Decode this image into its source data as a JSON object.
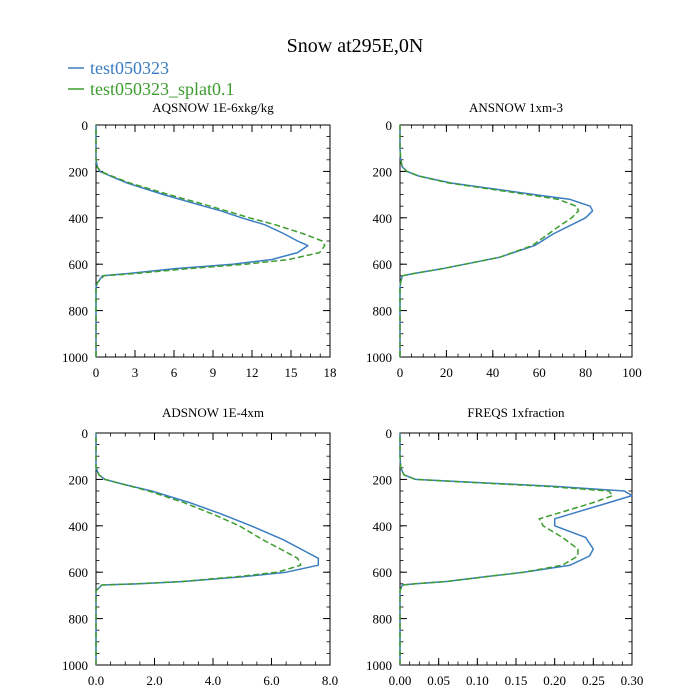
{
  "title": "Snow at295E,0N",
  "legend": [
    {
      "name": "test050323",
      "color": "#3a7dc2",
      "dash": "solid"
    },
    {
      "name": "test050323_splat0.1",
      "color": "#3c9d2e",
      "dash": "dashed"
    }
  ],
  "chart_data": [
    {
      "type": "line",
      "title": "AQSNOW  1E-6xkg/kg",
      "xlim": [
        0,
        18
      ],
      "ylim": [
        1000,
        0
      ],
      "xticks": [
        0,
        3,
        6,
        9,
        12,
        15,
        18
      ],
      "xtick_labels": [
        "0",
        "3",
        "6",
        "9",
        "12",
        "15",
        "18"
      ],
      "yticks": [
        0,
        200,
        400,
        600,
        800,
        1000
      ],
      "ytick_labels": [
        "0",
        "200",
        "400",
        "600",
        "800",
        "1000"
      ],
      "series": [
        {
          "name": "test050323",
          "y": [
            1000,
            750,
            700,
            680,
            650,
            640,
            620,
            600,
            580,
            550,
            520,
            500,
            470,
            430,
            400,
            370,
            350,
            300,
            250,
            220,
            200,
            180,
            150,
            100,
            50,
            0
          ],
          "x": [
            0,
            0,
            0,
            0.1,
            0.5,
            2.5,
            6,
            10.5,
            13.5,
            15.5,
            16.3,
            15.5,
            14.5,
            13,
            11.2,
            9.6,
            8.3,
            5.2,
            2.4,
            1.1,
            0.3,
            0.1,
            0,
            0,
            0,
            0
          ]
        },
        {
          "name": "test050323_splat0.1",
          "y": [
            1000,
            750,
            700,
            680,
            650,
            640,
            620,
            600,
            580,
            550,
            520,
            500,
            470,
            430,
            400,
            370,
            350,
            300,
            250,
            220,
            200,
            180,
            150,
            100,
            50,
            0
          ],
          "x": [
            0,
            0,
            0,
            0.1,
            0.6,
            3,
            7,
            11.5,
            14.8,
            17.2,
            17.6,
            17.4,
            16.0,
            13.8,
            11.8,
            10,
            8.8,
            5.6,
            2.6,
            1.2,
            0.35,
            0.1,
            0,
            0,
            0,
            0
          ]
        }
      ]
    },
    {
      "type": "line",
      "title": "ANSNOW  1xm-3",
      "xlim": [
        0,
        100
      ],
      "ylim": [
        1000,
        0
      ],
      "xticks": [
        0,
        20,
        40,
        60,
        80,
        100
      ],
      "xtick_labels": [
        "0",
        "20",
        "40",
        "60",
        "80",
        "100"
      ],
      "yticks": [
        0,
        200,
        400,
        600,
        800,
        1000
      ],
      "ytick_labels": [
        "0",
        "200",
        "400",
        "600",
        "800",
        "1000"
      ],
      "series": [
        {
          "name": "test050323",
          "y": [
            1000,
            750,
            700,
            680,
            650,
            640,
            620,
            600,
            570,
            520,
            470,
            440,
            400,
            370,
            350,
            320,
            300,
            250,
            220,
            200,
            180,
            150,
            100,
            50,
            0
          ],
          "x": [
            0,
            0,
            0,
            0.2,
            1,
            6,
            18,
            28,
            43,
            58,
            66,
            72,
            80,
            83,
            82,
            73,
            58,
            22,
            8,
            3,
            1,
            0.3,
            0,
            0,
            0
          ]
        },
        {
          "name": "test050323_splat0.1",
          "y": [
            1000,
            750,
            700,
            680,
            650,
            640,
            620,
            600,
            570,
            520,
            470,
            440,
            400,
            370,
            350,
            320,
            300,
            250,
            220,
            200,
            180,
            150,
            100,
            50,
            0
          ],
          "x": [
            0,
            0,
            0,
            0.2,
            1,
            6,
            18,
            28,
            43,
            57,
            64,
            68,
            74,
            77,
            76,
            68,
            55,
            21,
            8,
            3,
            1,
            0.3,
            0,
            0,
            0
          ]
        }
      ]
    },
    {
      "type": "line",
      "title": "ADSNOW  1E-4xm",
      "xlim": [
        0,
        8
      ],
      "ylim": [
        1000,
        0
      ],
      "xticks": [
        0,
        2,
        4,
        6,
        8
      ],
      "xtick_labels": [
        "0.0",
        "2.0",
        "4.0",
        "6.0",
        "8.0"
      ],
      "yticks": [
        0,
        200,
        400,
        600,
        800,
        1000
      ],
      "ytick_labels": [
        "0",
        "200",
        "400",
        "600",
        "800",
        "1000"
      ],
      "series": [
        {
          "name": "test050323",
          "y": [
            1000,
            750,
            700,
            680,
            655,
            650,
            640,
            620,
            600,
            570,
            540,
            500,
            460,
            400,
            350,
            300,
            250,
            220,
            200,
            180,
            150,
            100,
            50,
            0
          ],
          "x": [
            0,
            0,
            0,
            0,
            0.2,
            1.5,
            3,
            5,
            6.5,
            7.6,
            7.6,
            7.0,
            6.4,
            5.3,
            4.3,
            3.2,
            1.9,
            0.9,
            0.3,
            0.1,
            0,
            0,
            0,
            0
          ]
        },
        {
          "name": "test050323_splat0.1",
          "y": [
            1000,
            750,
            700,
            680,
            655,
            650,
            640,
            620,
            600,
            570,
            540,
            500,
            460,
            400,
            350,
            300,
            250,
            220,
            200,
            180,
            150,
            100,
            50,
            0
          ],
          "x": [
            0,
            0,
            0,
            0,
            0.2,
            1.4,
            2.9,
            4.8,
            6.2,
            7.0,
            6.9,
            6.3,
            5.7,
            4.9,
            4.0,
            3.0,
            1.8,
            0.9,
            0.3,
            0.1,
            0,
            0,
            0,
            0
          ]
        }
      ]
    },
    {
      "type": "line",
      "title": "FREQS  1xfraction",
      "xlim": [
        0,
        0.3
      ],
      "ylim": [
        1000,
        0
      ],
      "xticks": [
        0,
        0.05,
        0.1,
        0.15,
        0.2,
        0.25,
        0.3
      ],
      "xtick_labels": [
        "0.00",
        "0.05",
        "0.10",
        "0.15",
        "0.20",
        "0.25",
        "0.30"
      ],
      "yticks": [
        0,
        200,
        400,
        600,
        800,
        1000
      ],
      "ytick_labels": [
        "0",
        "200",
        "400",
        "600",
        "800",
        "1000"
      ],
      "series": [
        {
          "name": "test050323",
          "y": [
            1000,
            750,
            700,
            680,
            655,
            650,
            640,
            620,
            600,
            570,
            530,
            500,
            450,
            400,
            370,
            350,
            300,
            270,
            250,
            230,
            210,
            200,
            180,
            150,
            100,
            50,
            0
          ],
          "x": [
            0,
            0,
            0,
            0,
            0.003,
            0.02,
            0.06,
            0.11,
            0.16,
            0.22,
            0.245,
            0.25,
            0.24,
            0.2,
            0.2,
            0.22,
            0.27,
            0.3,
            0.29,
            0.2,
            0.08,
            0.02,
            0.005,
            0.001,
            0,
            0,
            0
          ]
        },
        {
          "name": "test050323_splat0.1",
          "y": [
            1000,
            750,
            700,
            680,
            655,
            650,
            640,
            620,
            600,
            570,
            530,
            500,
            450,
            400,
            370,
            350,
            300,
            270,
            250,
            230,
            210,
            200,
            180,
            150,
            100,
            50,
            0
          ],
          "x": [
            0,
            0,
            0,
            0,
            0.003,
            0.02,
            0.06,
            0.11,
            0.16,
            0.21,
            0.23,
            0.23,
            0.21,
            0.185,
            0.18,
            0.2,
            0.25,
            0.275,
            0.27,
            0.19,
            0.075,
            0.02,
            0.005,
            0.001,
            0,
            0,
            0
          ]
        }
      ]
    }
  ]
}
